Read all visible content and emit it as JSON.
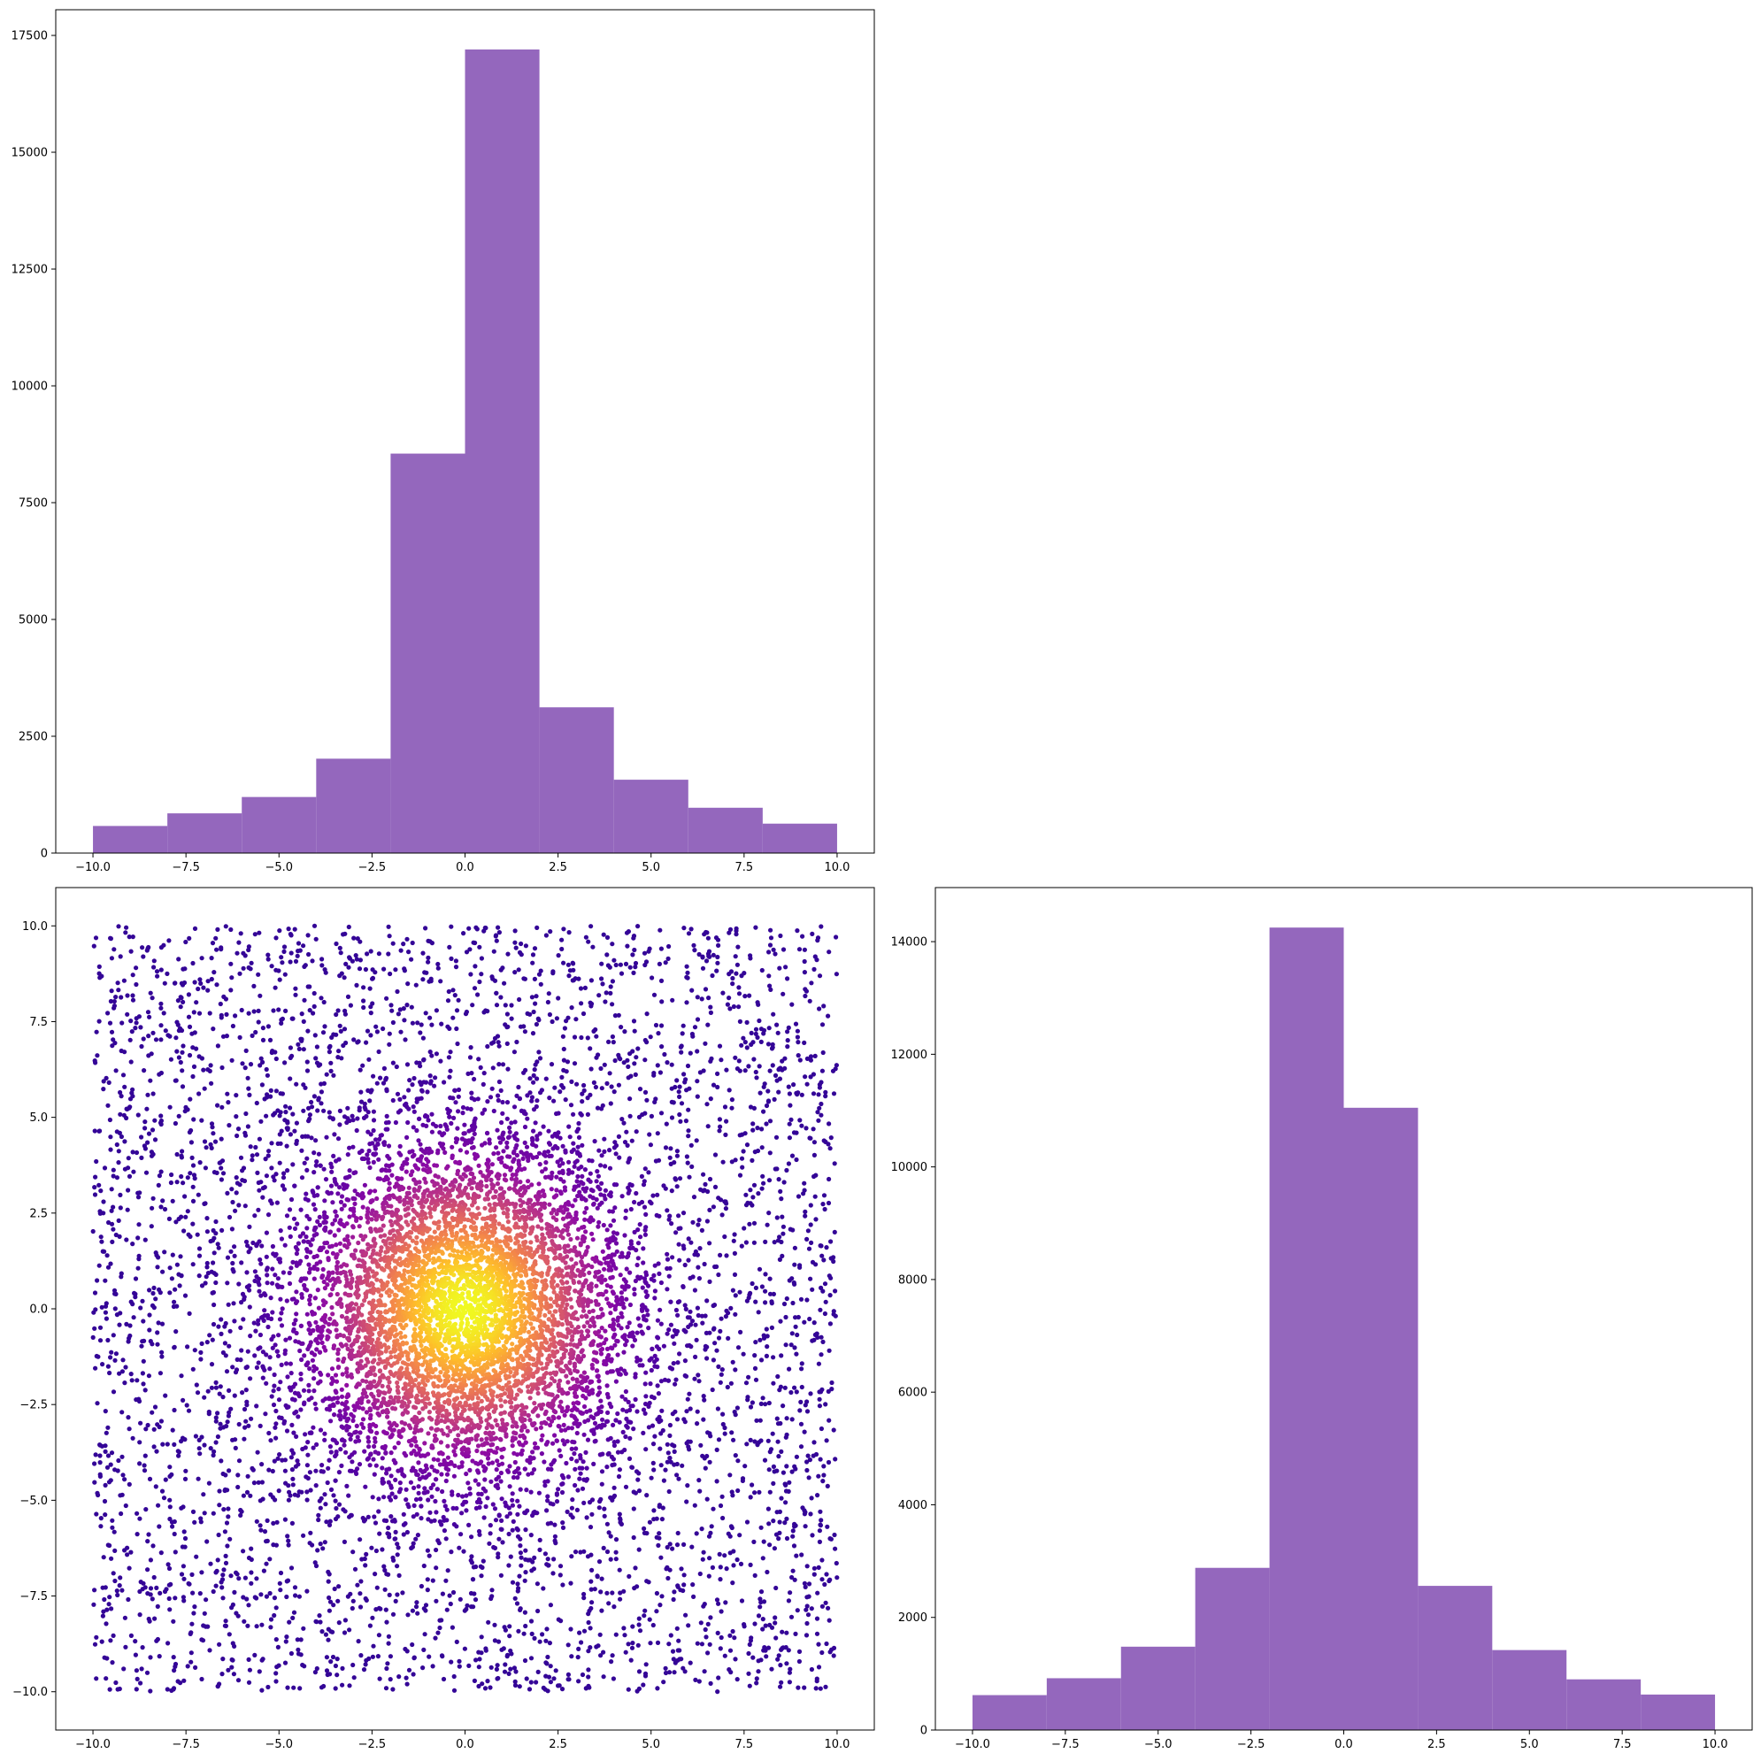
{
  "chart_data": [
    {
      "panel": "top-left",
      "type": "bar",
      "categories": [
        "-10 to -8",
        "-8 to -6",
        "-6 to -4",
        "-4 to -2",
        "-2 to 0",
        "0 to 2",
        "2 to 4",
        "4 to 6",
        "6 to 8",
        "8 to 10"
      ],
      "bin_edges": [
        -10,
        -8,
        -6,
        -4,
        -2,
        0,
        2,
        4,
        6,
        8,
        10
      ],
      "values": [
        580,
        850,
        1200,
        2020,
        8550,
        17200,
        3120,
        1570,
        970,
        630
      ],
      "xlim": [
        -11,
        11
      ],
      "ylim": [
        0,
        18050
      ],
      "xticks": [
        -10,
        -7.5,
        -5,
        -2.5,
        0,
        2.5,
        5,
        7.5,
        10
      ],
      "xtick_labels": [
        "−10.0",
        "−7.5",
        "−5.0",
        "−2.5",
        "0.0",
        "2.5",
        "5.0",
        "7.5",
        "10.0"
      ],
      "yticks": [
        0,
        2500,
        5000,
        7500,
        10000,
        12500,
        15000,
        17500
      ],
      "ytick_labels": [
        "0",
        "2500",
        "5000",
        "7500",
        "10000",
        "12500",
        "15000",
        "17500"
      ],
      "color": "#9467bd",
      "grid": false,
      "title": "",
      "xlabel": "",
      "ylabel": ""
    },
    {
      "panel": "bottom-left",
      "type": "scatter",
      "x_range": [
        -10,
        10
      ],
      "y_range": [
        -10,
        10
      ],
      "xlim": [
        -11,
        11
      ],
      "ylim": [
        -11,
        11
      ],
      "point_count": 10000,
      "density": "concentrated around (0, 0), uniform background",
      "colormap": "plasma",
      "color_by": "point density",
      "colormap_stops": [
        "#0d0887",
        "#5302a3",
        "#8b0aa5",
        "#b83289",
        "#db5c68",
        "#f48849",
        "#febd2a",
        "#f0f921"
      ],
      "xticks": [
        -10,
        -7.5,
        -5,
        -2.5,
        0,
        2.5,
        5,
        7.5,
        10
      ],
      "xtick_labels": [
        "−10.0",
        "−7.5",
        "−5.0",
        "−2.5",
        "0.0",
        "2.5",
        "5.0",
        "7.5",
        "10.0"
      ],
      "yticks": [
        -10,
        -7.5,
        -5,
        -2.5,
        0,
        2.5,
        5,
        7.5,
        10
      ],
      "ytick_labels": [
        "−10.0",
        "−7.5",
        "−5.0",
        "−2.5",
        "0.0",
        "2.5",
        "5.0",
        "7.5",
        "10.0"
      ],
      "grid": false,
      "title": "",
      "xlabel": "",
      "ylabel": ""
    },
    {
      "panel": "bottom-right",
      "type": "bar",
      "categories": [
        "-10 to -8",
        "-8 to -6",
        "-6 to -4",
        "-4 to -2",
        "-2 to 0",
        "0 to 2",
        "2 to 4",
        "4 to 6",
        "6 to 8",
        "8 to 10"
      ],
      "bin_edges": [
        -10,
        -8,
        -6,
        -4,
        -2,
        0,
        2,
        4,
        6,
        8,
        10
      ],
      "values": [
        620,
        920,
        1480,
        2880,
        14250,
        11050,
        2560,
        1420,
        900,
        630
      ],
      "xlim": [
        -11,
        11
      ],
      "ylim": [
        0,
        14960
      ],
      "xticks": [
        -10,
        -7.5,
        -5,
        -2.5,
        0,
        2.5,
        5,
        7.5,
        10
      ],
      "xtick_labels": [
        "−10.0",
        "−7.5",
        "−5.0",
        "−2.5",
        "0.0",
        "2.5",
        "5.0",
        "7.5",
        "10.0"
      ],
      "yticks": [
        0,
        2000,
        4000,
        6000,
        8000,
        10000,
        12000,
        14000
      ],
      "ytick_labels": [
        "0",
        "2000",
        "4000",
        "6000",
        "8000",
        "10000",
        "12000",
        "14000"
      ],
      "color": "#9467bd",
      "grid": false,
      "title": "",
      "xlabel": "",
      "ylabel": ""
    }
  ]
}
